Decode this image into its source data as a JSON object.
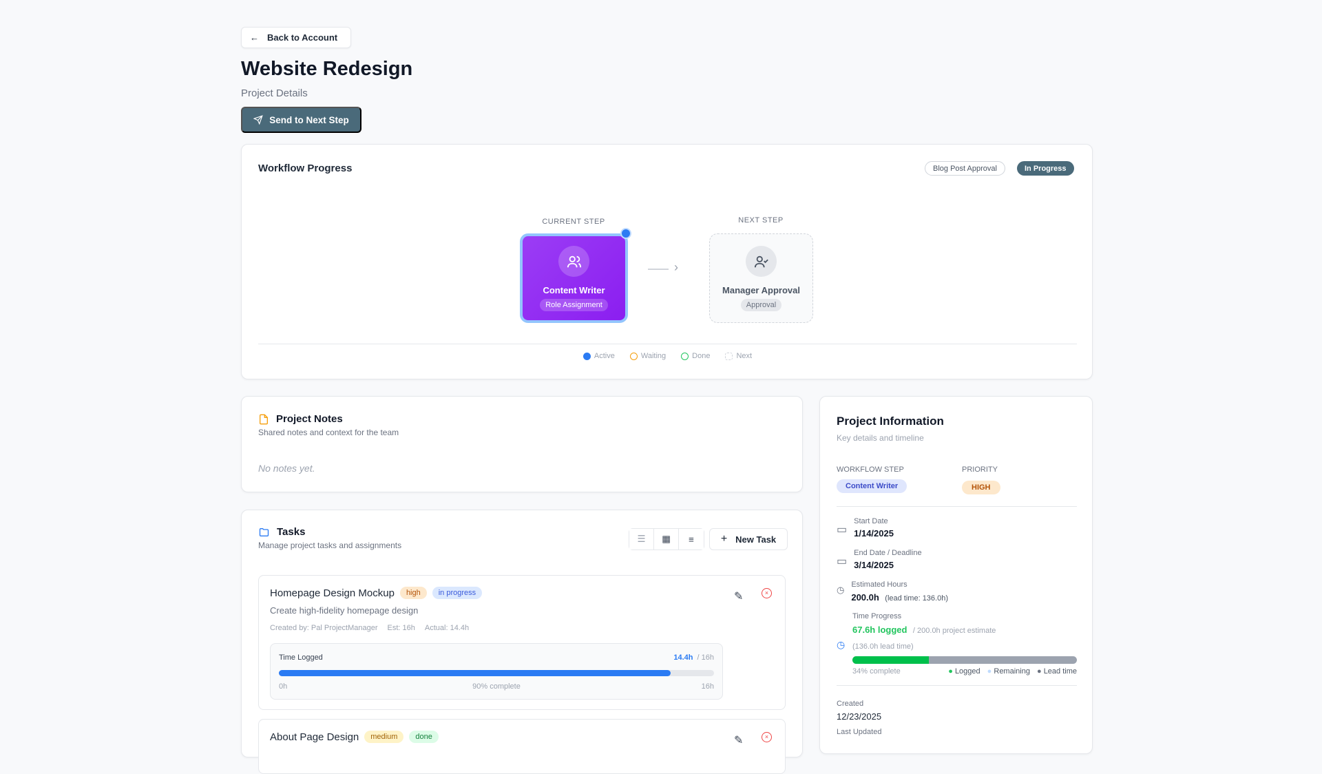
{
  "header": {
    "back_label": "Back to Account",
    "title": "Website Redesign",
    "subtitle": "Project Details",
    "send_label": "Send to Next Step"
  },
  "workflow": {
    "title": "Workflow Progress",
    "workflow_name": "Blog Post Approval",
    "status": "In Progress",
    "current_step": {
      "label": "CURRENT STEP",
      "name": "Content Writer",
      "type": "Role Assignment",
      "icon": "users-icon"
    },
    "next_step": {
      "label": "NEXT STEP",
      "name": "Manager Approval",
      "type": "Approval",
      "icon": "user-check-icon"
    },
    "legend": [
      {
        "label": "Active",
        "color": "#2b7bf3"
      },
      {
        "label": "Waiting",
        "color": "#f59e0b"
      },
      {
        "label": "Done",
        "color": "#22c55e"
      },
      {
        "label": "Next",
        "color": "#d1d5db"
      }
    ]
  },
  "notes": {
    "title": "Project Notes",
    "subtitle": "Shared notes and context for the team",
    "empty": "No notes yet."
  },
  "tasks": {
    "title": "Tasks",
    "subtitle": "Manage project tasks and assignments",
    "new_label": "New Task",
    "items": [
      {
        "title": "Homepage Design Mockup",
        "priority": "high",
        "status": "in progress",
        "description": "Create high-fidelity homepage design",
        "created_by": "Created by: Pal ProjectManager",
        "est": "Est: 16h",
        "actual": "Actual: 14.4h",
        "time_label": "Time Logged",
        "logged": "14.4h",
        "total": "/ 16h",
        "min": "0h",
        "max": "16h",
        "percent_label": "90% complete",
        "percent": 90
      },
      {
        "title": "About Page Design",
        "priority": "medium",
        "status": "done"
      }
    ]
  },
  "info": {
    "title": "Project Information",
    "subtitle": "Key details and timeline",
    "workflow_step_label": "WORKFLOW STEP",
    "workflow_step": "Content Writer",
    "priority_label": "PRIORITY",
    "priority": "HIGH",
    "start_label": "Start Date",
    "start": "1/14/2025",
    "end_label": "End Date / Deadline",
    "end": "3/14/2025",
    "est_label": "Estimated Hours",
    "est": "200.0h",
    "lead": "(lead time: 136.0h)",
    "progress_label": "Time Progress",
    "logged": "67.6h logged",
    "estimate": "/ 200.0h project estimate",
    "lead_time": "(136.0h lead time)",
    "percent": 34,
    "percent_label": "34% complete",
    "legend": [
      "Logged",
      "Remaining",
      "Lead time"
    ],
    "created_label": "Created",
    "created": "12/23/2025",
    "updated_label": "Last Updated"
  }
}
